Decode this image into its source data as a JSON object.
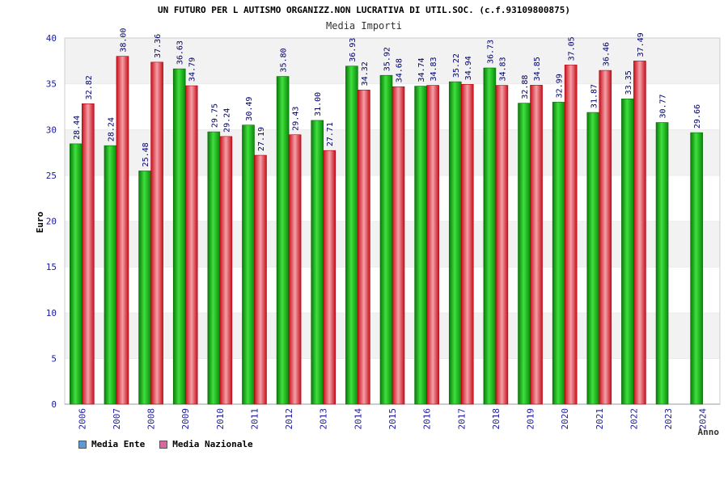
{
  "chart_data": {
    "type": "bar",
    "title": "UN FUTURO PER L AUTISMO ORGANIZZ.NON LUCRATIVA DI UTIL.SOC. (c.f.93109800875)",
    "subtitle": "Media Importi",
    "xlabel": "Anno",
    "ylabel": "Euro",
    "ylim": [
      0,
      40
    ],
    "yticks": [
      0,
      5,
      10,
      15,
      20,
      25,
      30,
      35,
      40
    ],
    "grid": true,
    "categories": [
      "2006",
      "2007",
      "2008",
      "2009",
      "2010",
      "2011",
      "2012",
      "2013",
      "2014",
      "2015",
      "2016",
      "2017",
      "2018",
      "2019",
      "2020",
      "2021",
      "2022",
      "2023",
      "2024"
    ],
    "series": [
      {
        "name": "Media Ente",
        "color": "#1fb51f",
        "values": [
          28.44,
          28.24,
          25.48,
          36.63,
          29.75,
          30.49,
          35.8,
          31.0,
          36.93,
          35.92,
          34.74,
          35.22,
          36.73,
          32.88,
          32.99,
          31.87,
          33.35,
          30.77,
          29.66
        ],
        "labels": [
          "28.44",
          "28.24",
          "25.48",
          "36.63",
          "29.75",
          "30.49",
          "35.80",
          "31.00",
          "36.93",
          "35.92",
          "34.74",
          "35.22",
          "36.73",
          "32.88",
          "32.99",
          "31.87",
          "33.35",
          "30.77",
          "29.66"
        ]
      },
      {
        "name": "Media Nazionale",
        "color": "#e2303a",
        "values": [
          32.82,
          38.0,
          37.36,
          34.79,
          29.24,
          27.19,
          29.43,
          27.71,
          34.32,
          34.68,
          34.83,
          34.94,
          34.83,
          34.85,
          37.05,
          36.46,
          37.49,
          null,
          null
        ],
        "labels": [
          "32.82",
          "38.00",
          "37.36",
          "34.79",
          "29.24",
          "27.19",
          "29.43",
          "27.71",
          "34.32",
          "34.68",
          "34.83",
          "34.94",
          "34.83",
          "34.85",
          "37.05",
          "36.46",
          "37.49",
          null,
          null
        ]
      }
    ],
    "legend": [
      {
        "name": "Media Ente",
        "color": "#5b9bd5"
      },
      {
        "name": "Media Nazionale",
        "color": "#d06aa0"
      }
    ],
    "legend_position": "bottom-left"
  }
}
